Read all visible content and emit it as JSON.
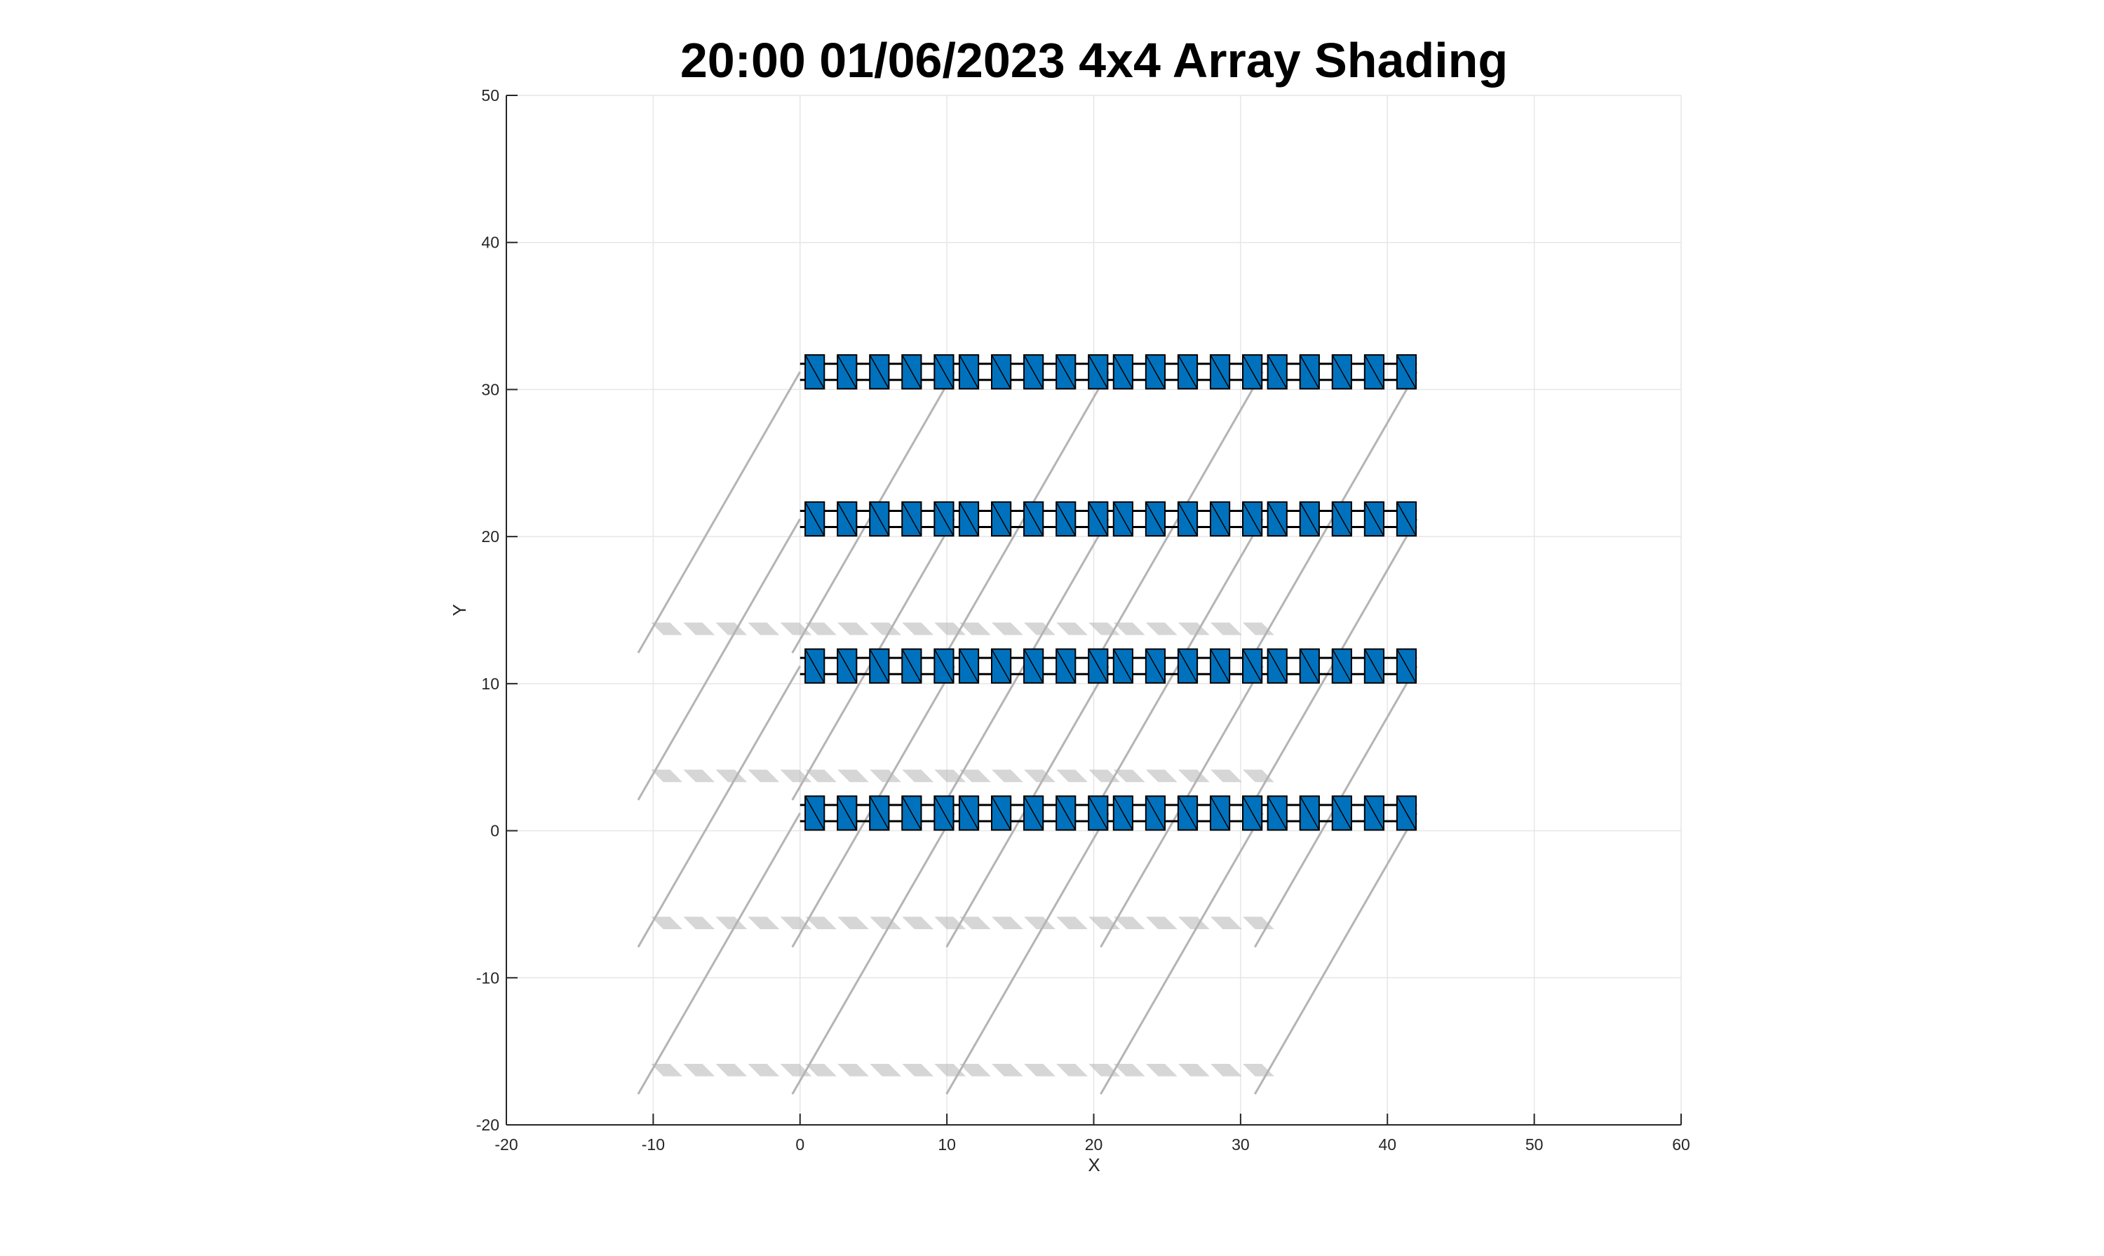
{
  "chart_data": {
    "type": "scatter",
    "title": "20:00 01/06/2023 4x4 Array Shading",
    "xlabel": "X",
    "ylabel": "Y",
    "xlim": [
      -20,
      60
    ],
    "ylim": [
      -20,
      50
    ],
    "xticks": [
      -20,
      -10,
      0,
      10,
      20,
      30,
      40,
      50,
      60
    ],
    "yticks": [
      -20,
      -10,
      0,
      10,
      20,
      30,
      40,
      50
    ],
    "grid": true,
    "colors": {
      "panel_fill": "#0072bd",
      "panel_edge": "#000000",
      "shadow": "#b4b4b4",
      "grid": "#e6e6e6",
      "axis": "#262626"
    },
    "array": {
      "rows": 4,
      "tables_per_row": 4,
      "row_center_y": [
        1.2,
        11.2,
        21.2,
        31.2
      ],
      "table_x_start": [
        0,
        10.5,
        21,
        31.5
      ],
      "modules_per_table": 5,
      "module_pitch": 2.2,
      "module_width": 1.3,
      "module_height": 2.3,
      "row_x_end": 42
    },
    "shadow": {
      "direction_dx": -10.5,
      "direction_dy": -18.2
    }
  }
}
